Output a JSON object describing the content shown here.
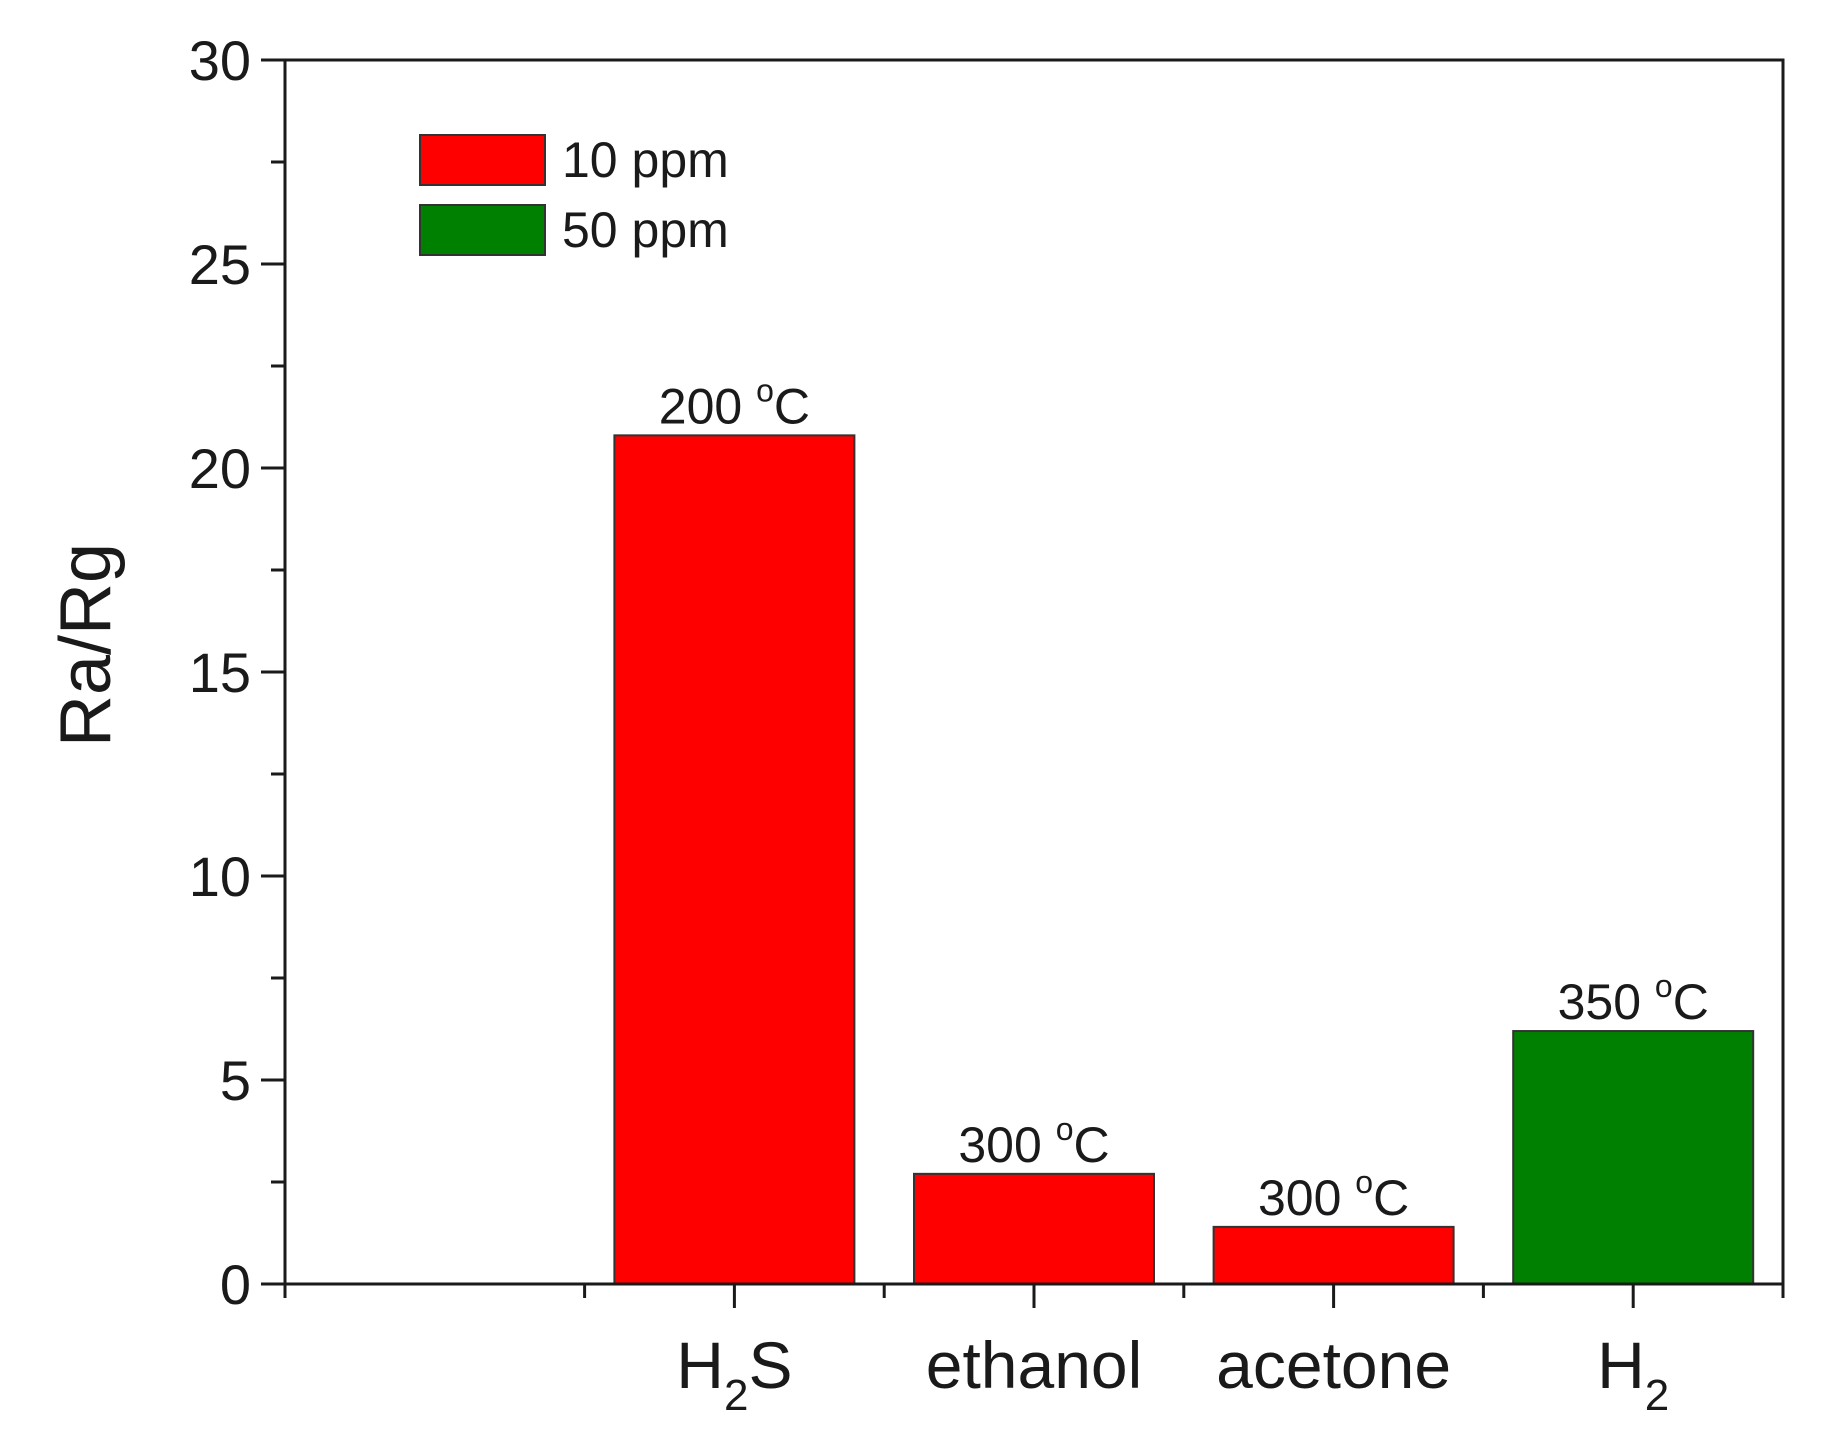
{
  "chart_data": {
    "type": "bar",
    "categories": [
      {
        "main": "H",
        "sub": "2",
        "tail": "S"
      },
      {
        "main": "ethanol",
        "sub": "",
        "tail": ""
      },
      {
        "main": "acetone",
        "sub": "",
        "tail": ""
      },
      {
        "main": "H",
        "sub": "2",
        "tail": ""
      }
    ],
    "values": [
      20.8,
      2.7,
      1.4,
      6.2
    ],
    "bar_series": [
      "10 ppm",
      "10 ppm",
      "10 ppm",
      "50 ppm"
    ],
    "bar_labels": [
      {
        "num": "200",
        "sup": "o",
        "unit": "C"
      },
      {
        "num": "300",
        "sup": "o",
        "unit": "C"
      },
      {
        "num": "300",
        "sup": "o",
        "unit": "C"
      },
      {
        "num": "350",
        "sup": "o",
        "unit": "C"
      }
    ],
    "ylabel": "Ra/Rg",
    "xlabel": "",
    "title": "",
    "ylim": [
      0,
      30
    ],
    "yticks": [
      "0",
      "5",
      "10",
      "15",
      "20",
      "25",
      "30"
    ],
    "legend": [
      {
        "name": "10 ppm",
        "color": "#ff0000"
      },
      {
        "name": "50 ppm",
        "color": "#008000"
      }
    ],
    "legend_position": "top-left",
    "grid": false
  }
}
